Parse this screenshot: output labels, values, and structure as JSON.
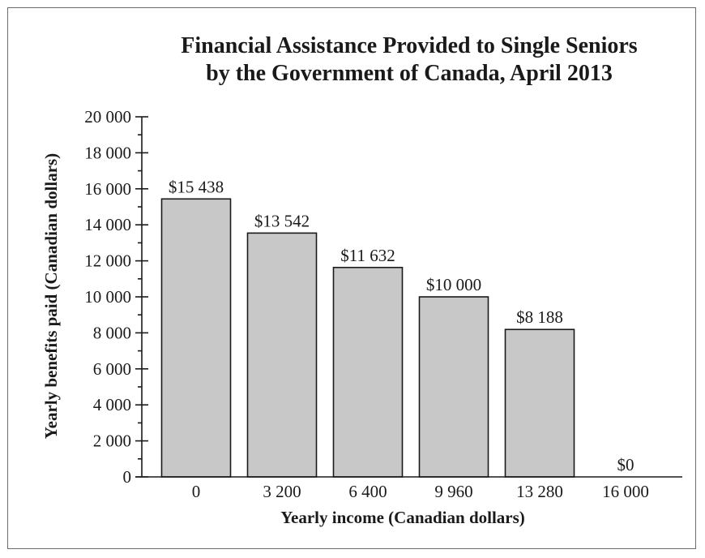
{
  "chart_data": {
    "type": "bar",
    "title_lines": [
      "Financial Assistance Provided to Single Seniors",
      "by the Government of Canada, April 2013"
    ],
    "xlabel": "Yearly income (Canadian dollars)",
    "ylabel": "Yearly benefits paid (Canadian dollars)",
    "categories": [
      "0",
      "3 200",
      "6 400",
      "9 960",
      "13 280",
      "16 000"
    ],
    "values": [
      15438,
      13542,
      11632,
      10000,
      8188,
      0
    ],
    "data_labels": [
      "$15 438",
      "$13 542",
      "$11 632",
      "$10 000",
      "$8 188",
      "$0"
    ],
    "ylim": [
      0,
      20000
    ],
    "y_ticks": [
      0,
      2000,
      4000,
      6000,
      8000,
      10000,
      12000,
      14000,
      16000,
      18000,
      20000
    ],
    "y_tick_labels": [
      "0",
      "2 000",
      "4 000",
      "6 000",
      "8 000",
      "10 000",
      "12 000",
      "14 000",
      "16 000",
      "18 000",
      "20 000"
    ],
    "y_minor_step": 1000,
    "grid": false,
    "bar_color": "#c8c8c8",
    "bar_edge_color": "#1a1a1a"
  }
}
